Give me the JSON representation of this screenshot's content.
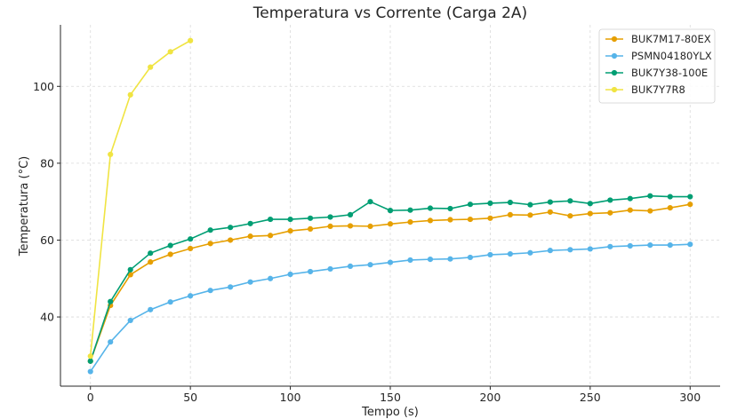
{
  "chart_data": {
    "type": "line",
    "title": "Temperatura vs Corrente (Carga 2A)",
    "xlabel": "Tempo (s)",
    "ylabel": "Temperatura (°C)",
    "xlim": [
      -15,
      315
    ],
    "ylim": [
      22,
      116
    ],
    "xticks": [
      0,
      50,
      100,
      150,
      200,
      250,
      300
    ],
    "yticks": [
      40,
      60,
      80,
      100
    ],
    "grid": true,
    "legend_position": "top-right",
    "series": [
      {
        "name": "BUK7M17-80EX",
        "color": "#E69F00",
        "x": [
          0,
          10,
          20,
          30,
          40,
          50,
          60,
          70,
          80,
          90,
          100,
          110,
          120,
          130,
          140,
          150,
          160,
          170,
          180,
          190,
          200,
          210,
          220,
          230,
          240,
          250,
          260,
          270,
          280,
          290,
          300
        ],
        "y": [
          28.5,
          43.0,
          51.0,
          54.3,
          56.3,
          57.8,
          59.1,
          60.0,
          61.0,
          61.2,
          62.4,
          62.9,
          63.6,
          63.7,
          63.6,
          64.2,
          64.7,
          65.1,
          65.3,
          65.4,
          65.7,
          66.6,
          66.5,
          67.3,
          66.3,
          66.9,
          67.1,
          67.8,
          67.6,
          68.4,
          69.3
        ]
      },
      {
        "name": "PSMN04180YLX",
        "color": "#56B4E9",
        "x": [
          0,
          10,
          20,
          30,
          40,
          50,
          60,
          70,
          80,
          90,
          100,
          110,
          120,
          130,
          140,
          150,
          160,
          170,
          180,
          190,
          200,
          210,
          220,
          230,
          240,
          250,
          260,
          270,
          280,
          290,
          300
        ],
        "y": [
          25.8,
          33.5,
          39.1,
          41.9,
          43.9,
          45.5,
          46.9,
          47.8,
          49.1,
          50.0,
          51.1,
          51.8,
          52.5,
          53.2,
          53.6,
          54.2,
          54.8,
          55.0,
          55.1,
          55.5,
          56.2,
          56.4,
          56.7,
          57.3,
          57.5,
          57.7,
          58.3,
          58.5,
          58.7,
          58.7,
          58.9
        ]
      },
      {
        "name": "BUK7Y38-100E",
        "color": "#009E73",
        "x": [
          0,
          10,
          20,
          30,
          40,
          50,
          60,
          70,
          80,
          90,
          100,
          110,
          120,
          130,
          140,
          150,
          160,
          170,
          180,
          190,
          200,
          210,
          220,
          230,
          240,
          250,
          260,
          270,
          280,
          290,
          300
        ],
        "y": [
          28.5,
          44.0,
          52.3,
          56.6,
          58.6,
          60.3,
          62.6,
          63.3,
          64.3,
          65.4,
          65.4,
          65.7,
          66.0,
          66.6,
          70.0,
          67.7,
          67.8,
          68.3,
          68.2,
          69.3,
          69.6,
          69.8,
          69.2,
          69.9,
          70.2,
          69.5,
          70.4,
          70.8,
          71.5,
          71.3,
          71.3
        ]
      },
      {
        "name": "BUK7Y7R8",
        "color": "#F0E442",
        "x": [
          0,
          10,
          20,
          30,
          40,
          50
        ],
        "y": [
          29.8,
          82.3,
          97.8,
          105.0,
          109.0,
          111.9
        ]
      }
    ]
  }
}
